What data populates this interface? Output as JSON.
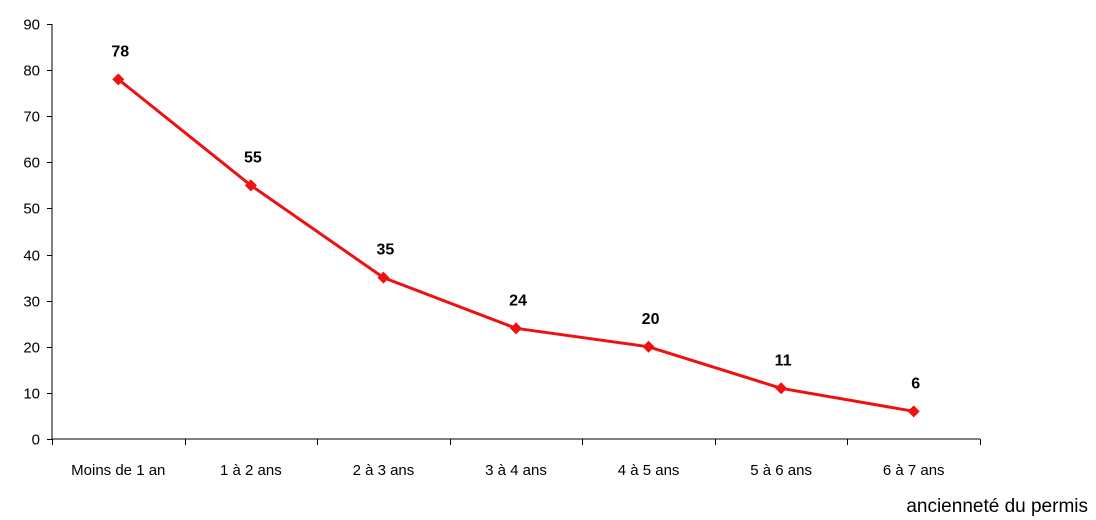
{
  "chart_data": {
    "type": "line",
    "title": "",
    "xlabel": "ancienneté du permis",
    "ylabel": "",
    "categories": [
      "Moins de 1 an",
      "1 à 2 ans",
      "2 à 3 ans",
      "3 à 4 ans",
      "4 à 5 ans",
      "5 à 6 ans",
      "6 à 7 ans"
    ],
    "series": [
      {
        "values": [
          78,
          55,
          35,
          24,
          20,
          11,
          6
        ],
        "color": "#ee1111",
        "marker": "diamond",
        "data_labels": [
          "78",
          "55",
          "35",
          "24",
          "20",
          "11",
          "6"
        ]
      }
    ],
    "ylim": [
      0,
      90
    ],
    "yticks": [
      "0",
      "10",
      "20",
      "30",
      "40",
      "50",
      "60",
      "70",
      "80",
      "90"
    ],
    "grid": false,
    "legend": "none"
  }
}
